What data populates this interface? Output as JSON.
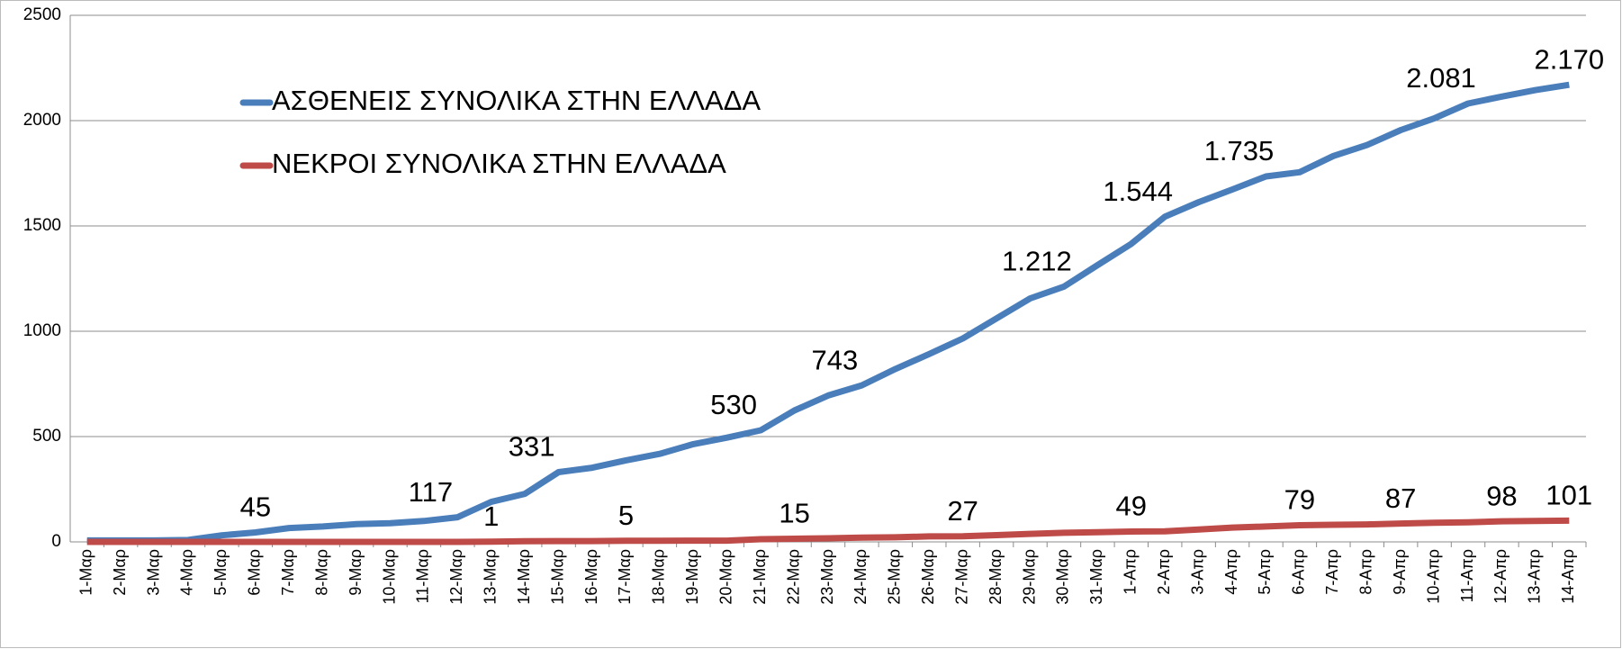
{
  "chart_data": {
    "type": "line",
    "categories": [
      "1-Μαρ",
      "2-Μαρ",
      "3-Μαρ",
      "4-Μαρ",
      "5-Μαρ",
      "6-Μαρ",
      "7-Μαρ",
      "8-Μαρ",
      "9-Μαρ",
      "10-Μαρ",
      "11-Μαρ",
      "12-Μαρ",
      "13-Μαρ",
      "14-Μαρ",
      "15-Μαρ",
      "16-Μαρ",
      "17-Μαρ",
      "18-Μαρ",
      "19-Μαρ",
      "20-Μαρ",
      "21-Μαρ",
      "22-Μαρ",
      "23-Μαρ",
      "24-Μαρ",
      "25-Μαρ",
      "26-Μαρ",
      "27-Μαρ",
      "28-Μαρ",
      "29-Μαρ",
      "30-Μαρ",
      "31-Μαρ",
      "1-Απρ",
      "2-Απρ",
      "3-Απρ",
      "4-Απρ",
      "5-Απρ",
      "6-Απρ",
      "7-Απρ",
      "8-Απρ",
      "9-Απρ",
      "10-Απρ",
      "11-Απρ",
      "12-Απρ",
      "13-Απρ",
      "14-Απρ"
    ],
    "series": [
      {
        "name": "ΑΣΘΕΝΕΙΣ ΣΥΝΟΛΙΚΑ ΣΤΗΝ ΕΛΛΑΔΑ",
        "color": "#4a7ebb",
        "values": [
          7,
          7,
          7,
          9,
          31,
          45,
          66,
          73,
          84,
          89,
          99,
          117,
          190,
          228,
          331,
          352,
          387,
          418,
          464,
          495,
          530,
          624,
          695,
          743,
          821,
          892,
          966,
          1061,
          1156,
          1212,
          1314,
          1415,
          1544,
          1613,
          1673,
          1735,
          1755,
          1832,
          1884,
          1955,
          2011,
          2081,
          2114,
          2145,
          2170
        ],
        "value_labels": [
          null,
          null,
          null,
          null,
          null,
          "45",
          null,
          null,
          null,
          null,
          null,
          "117",
          null,
          null,
          "331",
          null,
          null,
          null,
          null,
          null,
          "530",
          null,
          null,
          "743",
          null,
          null,
          null,
          null,
          null,
          "1.212",
          null,
          null,
          "1.544",
          null,
          null,
          "1.735",
          null,
          null,
          null,
          null,
          null,
          "2.081",
          null,
          null,
          "2.170"
        ]
      },
      {
        "name": "ΝΕΚΡΟΙ ΣΥΝΟΛΙΚΑ ΣΤΗΝ ΕΛΛΑΔΑ",
        "color": "#be4b48",
        "values": [
          0,
          0,
          0,
          0,
          0,
          0,
          0,
          0,
          0,
          0,
          0,
          0,
          1,
          3,
          4,
          4,
          5,
          5,
          6,
          6,
          13,
          15,
          17,
          20,
          22,
          26,
          27,
          32,
          38,
          43,
          46,
          49,
          50,
          59,
          68,
          73,
          79,
          81,
          83,
          87,
          91,
          93,
          98,
          99,
          101
        ],
        "value_labels": [
          null,
          null,
          null,
          null,
          null,
          null,
          null,
          null,
          null,
          null,
          null,
          null,
          "1",
          null,
          null,
          null,
          "5",
          null,
          null,
          null,
          null,
          "15",
          null,
          null,
          null,
          null,
          "27",
          null,
          null,
          null,
          null,
          "49",
          null,
          null,
          null,
          null,
          "79",
          null,
          null,
          "87",
          null,
          null,
          "98",
          null,
          "101"
        ]
      }
    ],
    "ylim": [
      0,
      2500
    ],
    "yticks": [
      0,
      500,
      1000,
      1500,
      2000,
      2500
    ],
    "grid": true
  }
}
